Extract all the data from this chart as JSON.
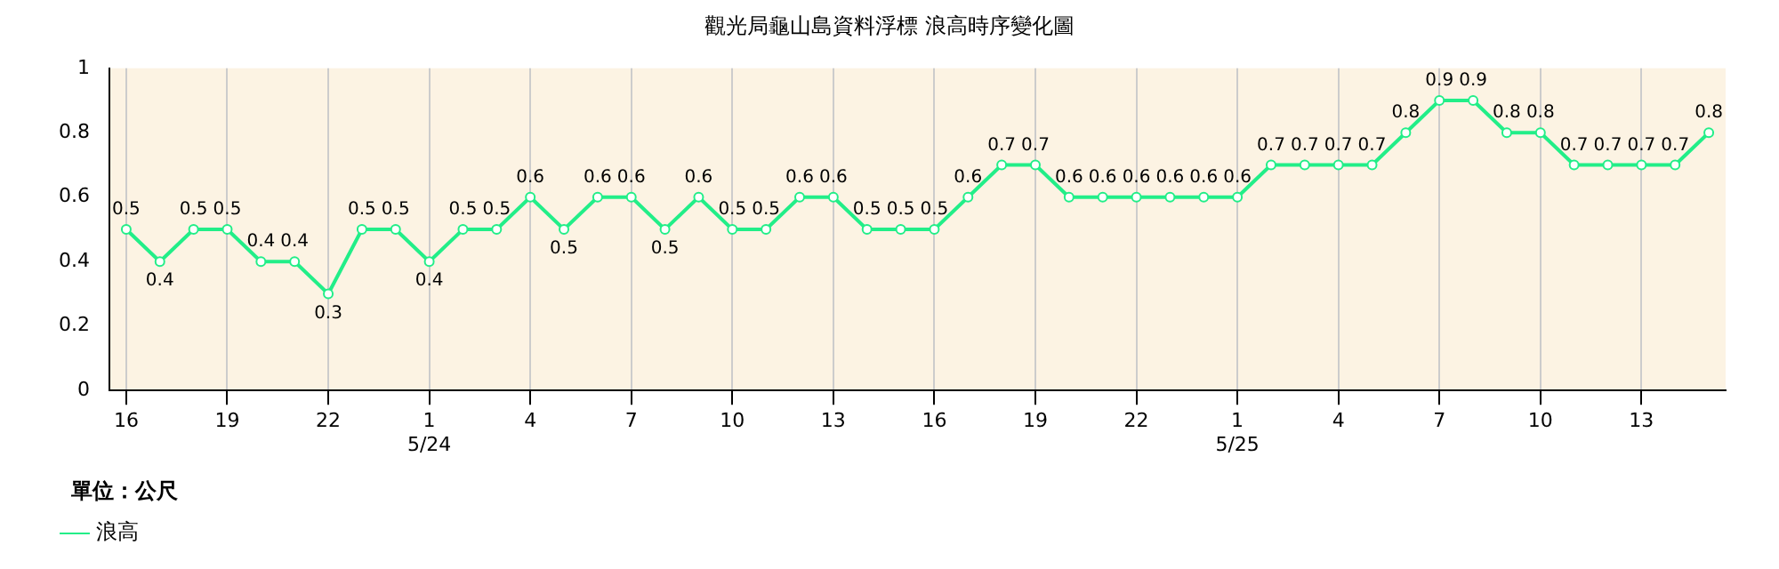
{
  "chart_data": {
    "type": "line",
    "title": "觀光局龜山島資料浮標 浪高時序變化圖",
    "categories": [
      "16",
      null,
      null,
      "19",
      null,
      null,
      "22",
      null,
      null,
      "1\n5/24",
      null,
      null,
      "4",
      null,
      null,
      "7",
      null,
      null,
      "10",
      null,
      null,
      "13",
      null,
      null,
      "16",
      null,
      null,
      "19",
      null,
      null,
      "22",
      null,
      null,
      "1\n5/25",
      null,
      null,
      "4",
      null,
      null,
      "7",
      null,
      null,
      "10",
      null,
      null,
      "13",
      null,
      null
    ],
    "series": [
      {
        "name": "浪高",
        "color": "#22ee88",
        "values": [
          0.5,
          0.4,
          0.5,
          0.5,
          0.4,
          0.4,
          0.3,
          0.5,
          0.5,
          0.4,
          0.5,
          0.5,
          0.6,
          0.5,
          0.6,
          0.6,
          0.5,
          0.6,
          0.5,
          0.5,
          0.6,
          0.6,
          0.5,
          0.5,
          0.5,
          0.6,
          0.7,
          0.7,
          0.6,
          0.6,
          0.6,
          0.6,
          0.6,
          0.6,
          0.7,
          0.7,
          0.7,
          0.7,
          0.8,
          0.9,
          0.9,
          0.8,
          0.8,
          0.7,
          0.7,
          0.7,
          0.7,
          0.8
        ]
      }
    ],
    "ylim": [
      0,
      1
    ],
    "yticks": [
      0,
      0.2,
      0.4,
      0.6,
      0.8,
      1
    ],
    "grid": "x",
    "legend": "bottom left",
    "marker": "circle",
    "line_style": "solid",
    "data_labels": true,
    "annotations": [
      "單位：公尺"
    ]
  }
}
